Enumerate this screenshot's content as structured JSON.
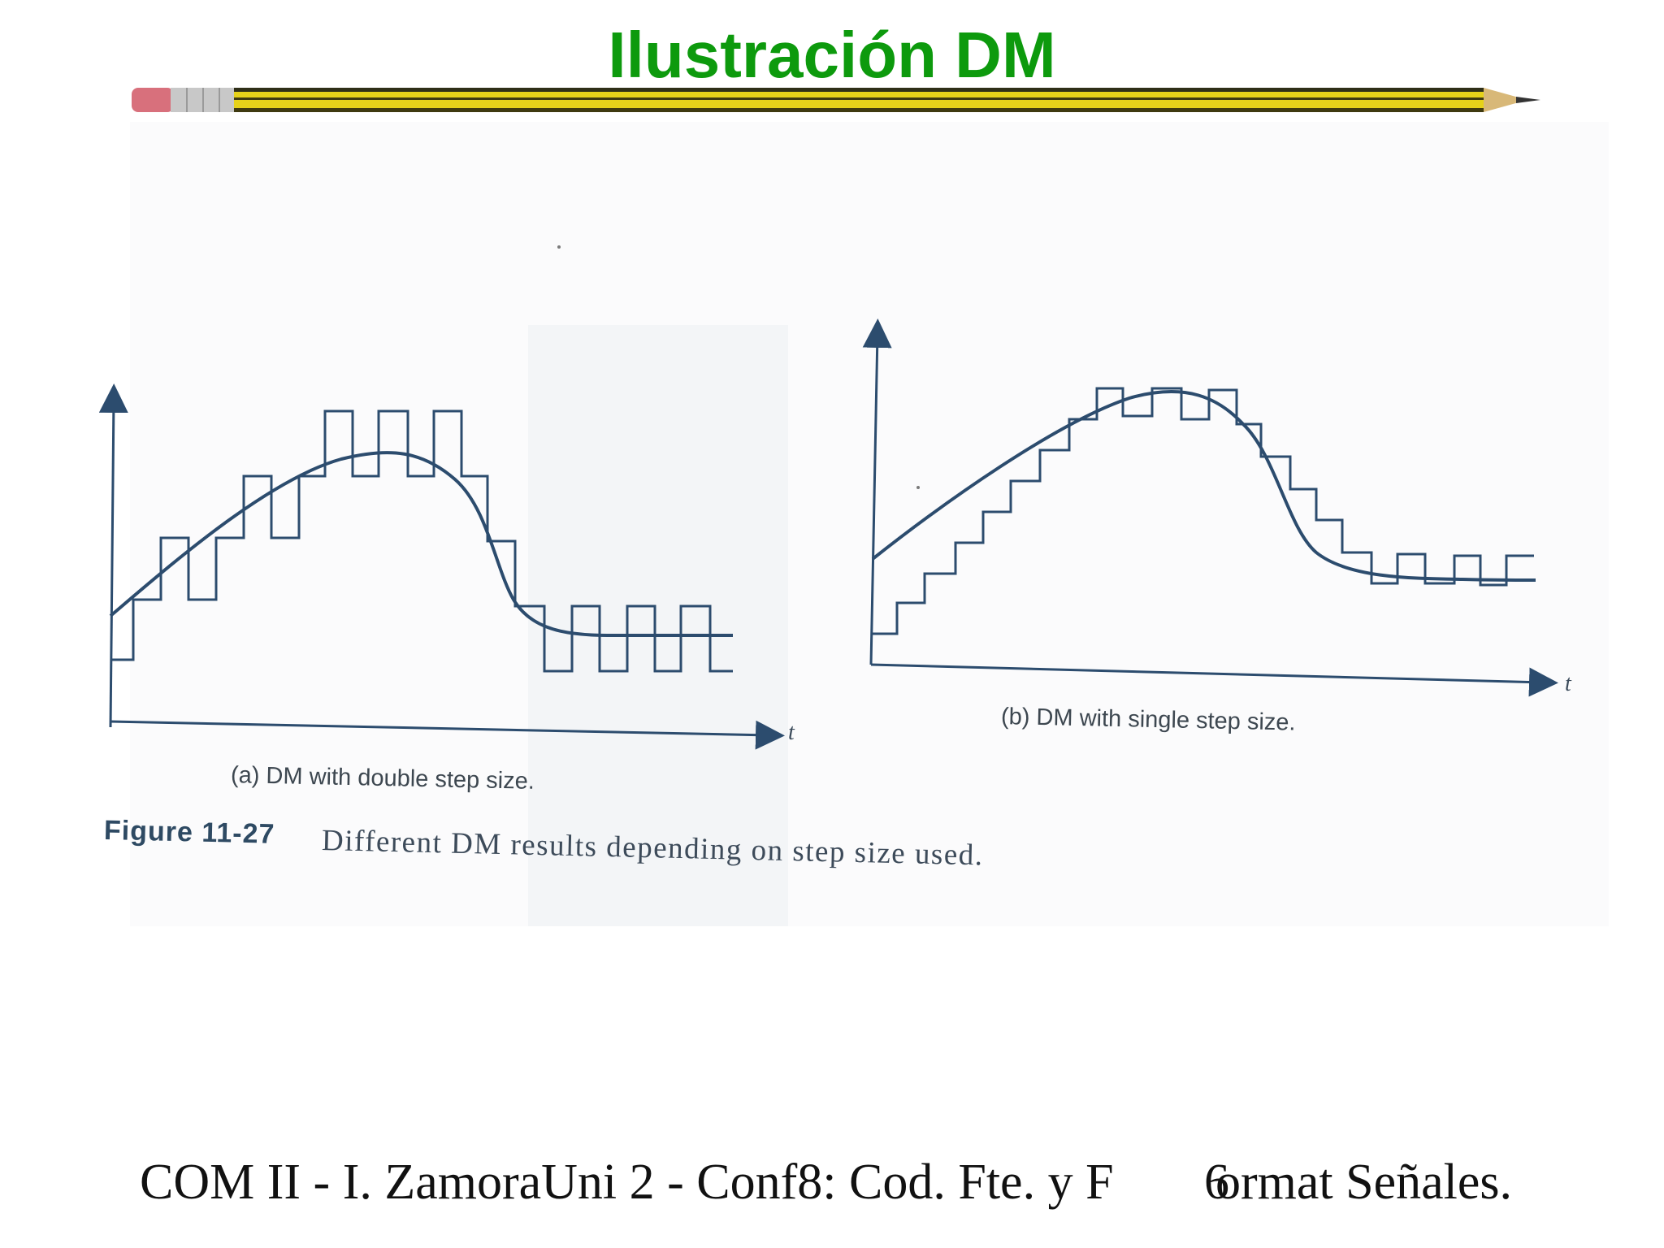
{
  "slide": {
    "title": "Ilustración DM"
  },
  "figure": {
    "caption_a": "(a)  DM with double step size.",
    "caption_b": "(b)  DM with single step size.",
    "figure_label": "Figure 11-27",
    "figure_caption": "Different DM results depending on step size used.",
    "axis_label_a": "t",
    "axis_label_b": "t",
    "colors": {
      "ink": "#2c4c6e",
      "title_green": "#0d9a0d",
      "pencil_yellow": "#e6d21a"
    }
  },
  "footer": {
    "left": "COM II - I. ZamoraUni 2 - Conf8: Cod. Fte. y F",
    "page": "6",
    "right": "ormat Señales."
  }
}
